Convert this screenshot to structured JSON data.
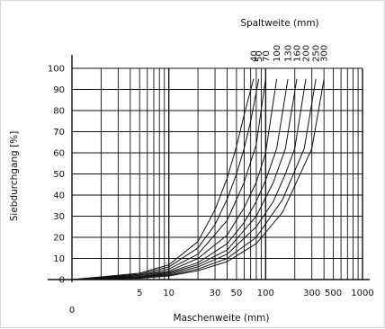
{
  "chart_data": {
    "type": "line",
    "title": "Spaltweite (mm)",
    "xlabel": "Maschenweite (mm)",
    "ylabel": "Siebdurchgang [%]",
    "x_scale": "log",
    "xlim": [
      1,
      1000
    ],
    "ylim": [
      0,
      100
    ],
    "grid": true,
    "x_origin_label": "0",
    "x_tick_labels": [
      "5",
      "10",
      "30",
      "50",
      "100",
      "300",
      "500",
      "1000"
    ],
    "y_tick_labels": [
      "0",
      "10",
      "20",
      "30",
      "40",
      "50",
      "60",
      "70",
      "80",
      "90",
      "100"
    ],
    "top_tick_labels": [
      "40",
      "50",
      "70",
      "100",
      "130",
      "160",
      "200",
      "250",
      "300"
    ],
    "series": [
      {
        "spaltweite": 40,
        "x": [
          1,
          5,
          10,
          20,
          30,
          40,
          50,
          60,
          75
        ],
        "y": [
          0,
          3,
          7,
          18,
          33,
          48,
          63,
          78,
          95
        ]
      },
      {
        "spaltweite": 50,
        "x": [
          1,
          5,
          10,
          20,
          30,
          40,
          50,
          60,
          70,
          85
        ],
        "y": [
          0,
          2.5,
          6,
          15,
          26,
          38,
          50,
          62,
          75,
          95
        ]
      },
      {
        "spaltweite": 70,
        "x": [
          1,
          5,
          10,
          20,
          40,
          60,
          80,
          100
        ],
        "y": [
          0,
          2,
          5,
          12,
          28,
          46,
          64,
          95
        ]
      },
      {
        "spaltweite": 100,
        "x": [
          1,
          5,
          10,
          20,
          40,
          60,
          80,
          100,
          130
        ],
        "y": [
          0,
          2,
          4,
          10,
          21,
          34,
          46,
          60,
          95
        ]
      },
      {
        "spaltweite": 130,
        "x": [
          1,
          5,
          10,
          20,
          40,
          60,
          80,
          100,
          130,
          170
        ],
        "y": [
          0,
          1.5,
          3.5,
          8,
          17,
          27,
          37,
          47,
          62,
          95
        ]
      },
      {
        "spaltweite": 160,
        "x": [
          1,
          5,
          10,
          20,
          40,
          80,
          120,
          160,
          210
        ],
        "y": [
          0,
          1.2,
          3,
          7,
          14,
          30,
          46,
          62,
          95
        ]
      },
      {
        "spaltweite": 200,
        "x": [
          1,
          5,
          10,
          20,
          40,
          80,
          120,
          160,
          200,
          260
        ],
        "y": [
          0,
          1,
          2.5,
          6,
          12,
          25,
          37,
          50,
          62,
          95
        ]
      },
      {
        "spaltweite": 250,
        "x": [
          1,
          5,
          10,
          20,
          40,
          80,
          150,
          250,
          330
        ],
        "y": [
          0,
          0.8,
          2,
          5,
          10,
          20,
          38,
          62,
          95
        ]
      },
      {
        "spaltweite": 300,
        "x": [
          1,
          5,
          10,
          20,
          40,
          80,
          150,
          300,
          400
        ],
        "y": [
          0,
          0.6,
          1.7,
          4.2,
          8.5,
          17,
          32,
          62,
          95
        ]
      }
    ]
  }
}
